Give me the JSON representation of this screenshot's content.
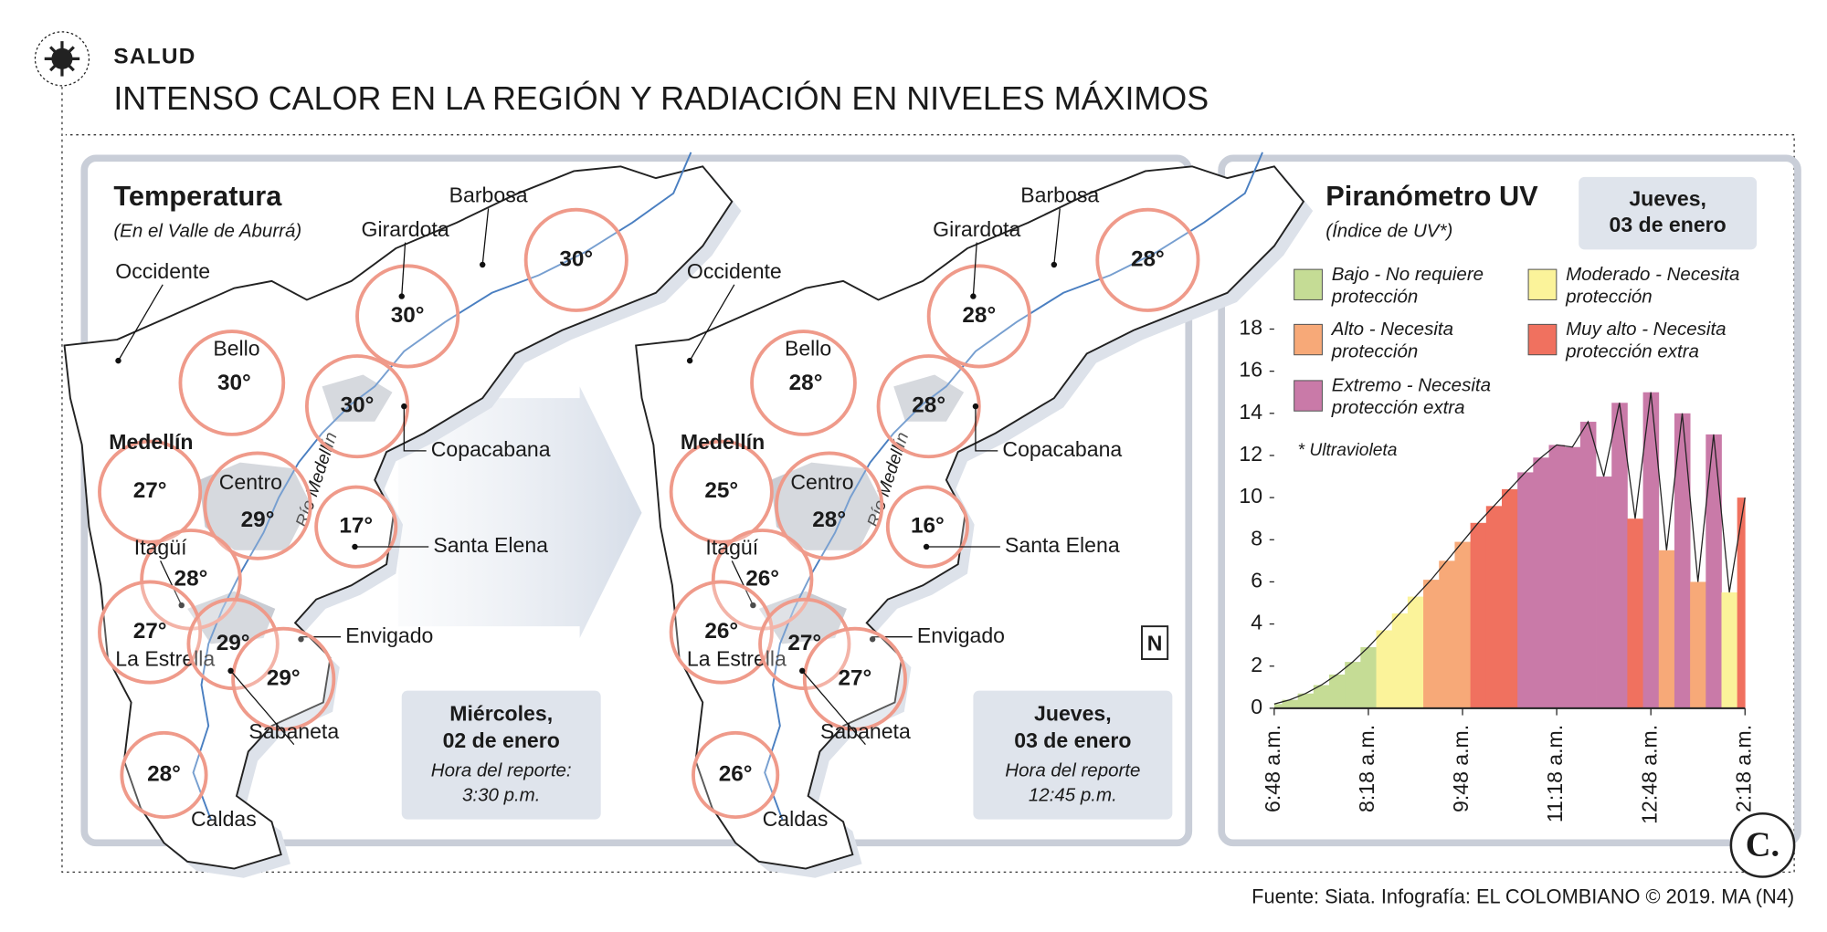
{
  "header": {
    "section": "SALUD",
    "title": "INTENSO CALOR EN LA REGIÓN Y RADIACIÓN EN NIVELES MÁXIMOS"
  },
  "temperature": {
    "title": "Temperatura",
    "subtitle": "(En el Valle de Aburrá)",
    "river": "Río Medellín",
    "maps": [
      {
        "stations": [
          {
            "name": "Barbosa",
            "temp": "30°"
          },
          {
            "name": "Girardota",
            "temp": "30°"
          },
          {
            "name": "Occidente"
          },
          {
            "name": "Bello",
            "temp": "30°"
          },
          {
            "name": "Copacabana",
            "temp": "30°"
          },
          {
            "name": "Medellín",
            "temp": "27°"
          },
          {
            "name": "Centro",
            "temp": "29°"
          },
          {
            "name": "Santa Elena",
            "temp": "17°"
          },
          {
            "name": "Itagüí",
            "temp": "28°"
          },
          {
            "name": "La Estrella",
            "temp": "27°"
          },
          {
            "name": "Envigado",
            "temp": "29°"
          },
          {
            "name": "Sabaneta",
            "temp": "29°"
          },
          {
            "name": "Caldas",
            "temp": "28°"
          }
        ],
        "date": {
          "day": "Miércoles,",
          "date": "02 de enero",
          "report": "Hora del reporte:",
          "time": "3:30 p.m."
        }
      },
      {
        "stations": [
          {
            "name": "Barbosa",
            "temp": "28°"
          },
          {
            "name": "Girardota",
            "temp": "28°"
          },
          {
            "name": "Occidente"
          },
          {
            "name": "Bello",
            "temp": "28°"
          },
          {
            "name": "Copacabana",
            "temp": "28°"
          },
          {
            "name": "Medellín",
            "temp": "25°"
          },
          {
            "name": "Centro",
            "temp": "28°"
          },
          {
            "name": "Santa Elena",
            "temp": "16°"
          },
          {
            "name": "Itagüí",
            "temp": "26°"
          },
          {
            "name": "La Estrella",
            "temp": "26°"
          },
          {
            "name": "Envigado",
            "temp": "27°"
          },
          {
            "name": "Sabaneta",
            "temp": "27°"
          },
          {
            "name": "Caldas",
            "temp": "26°"
          }
        ],
        "date": {
          "day": "Jueves,",
          "date": "03 de enero",
          "report": "Hora del reporte",
          "time": "12:45 p.m."
        }
      }
    ]
  },
  "chart_data": {
    "type": "area",
    "title": "Piranómetro UV",
    "subtitle": "(Índice de UV*)",
    "note": "* Ultravioleta",
    "date": {
      "day": "Jueves,",
      "date": "03 de enero"
    },
    "legend": [
      {
        "label": [
          "Bajo - No requiere",
          "protección"
        ],
        "color": "#c5dc95"
      },
      {
        "label": [
          "Moderado - Necesita",
          "protección"
        ],
        "color": "#fbf39a"
      },
      {
        "label": [
          "Alto - Necesita",
          "protección"
        ],
        "color": "#f7a978"
      },
      {
        "label": [
          "Muy alto - Necesita",
          "protección extra"
        ],
        "color": "#f0715f"
      },
      {
        "label": [
          "Extremo - Necesita",
          "protección extra"
        ],
        "color": "#c97aa8"
      }
    ],
    "categories": [
      "6:48 a.m.",
      null,
      null,
      null,
      null,
      null,
      "8:18 a.m.",
      null,
      null,
      null,
      null,
      null,
      "9:48 a.m.",
      null,
      null,
      null,
      null,
      null,
      "11:18 a.m.",
      null,
      null,
      null,
      null,
      null,
      "12:48 a.m.",
      null,
      null,
      null,
      null,
      null,
      "2:18 a.m."
    ],
    "values": [
      0.2,
      0.4,
      0.7,
      1.1,
      1.6,
      2.2,
      2.9,
      3.7,
      4.5,
      5.3,
      6.1,
      7.0,
      7.9,
      8.8,
      9.6,
      10.4,
      11.2,
      11.9,
      12.5,
      12.4,
      13.6,
      11.0,
      14.5,
      9.0,
      15.0,
      7.5,
      14.0,
      6.0,
      13.0,
      5.5,
      10.0
    ],
    "colors": [
      "#c5dc95",
      "#c5dc95",
      "#c5dc95",
      "#c5dc95",
      "#c5dc95",
      "#c5dc95",
      "#c5dc95",
      "#fbf39a",
      "#fbf39a",
      "#fbf39a",
      "#f7a978",
      "#f7a978",
      "#f7a978",
      "#f0715f",
      "#f0715f",
      "#f0715f",
      "#c97aa8",
      "#c97aa8",
      "#c97aa8",
      "#c97aa8",
      "#c97aa8",
      "#c97aa8",
      "#c97aa8",
      "#f0715f",
      "#c97aa8",
      "#f7a978",
      "#c97aa8",
      "#f7a978",
      "#c97aa8",
      "#fbf39a",
      "#f0715f"
    ],
    "ylim": [
      0,
      18
    ],
    "yticks": [
      0,
      2,
      4,
      6,
      8,
      10,
      12,
      14,
      16,
      18
    ]
  },
  "footer": {
    "source": "Fuente: Siata. Infografía: EL COLOMBIANO © 2019. MA (N4)"
  }
}
